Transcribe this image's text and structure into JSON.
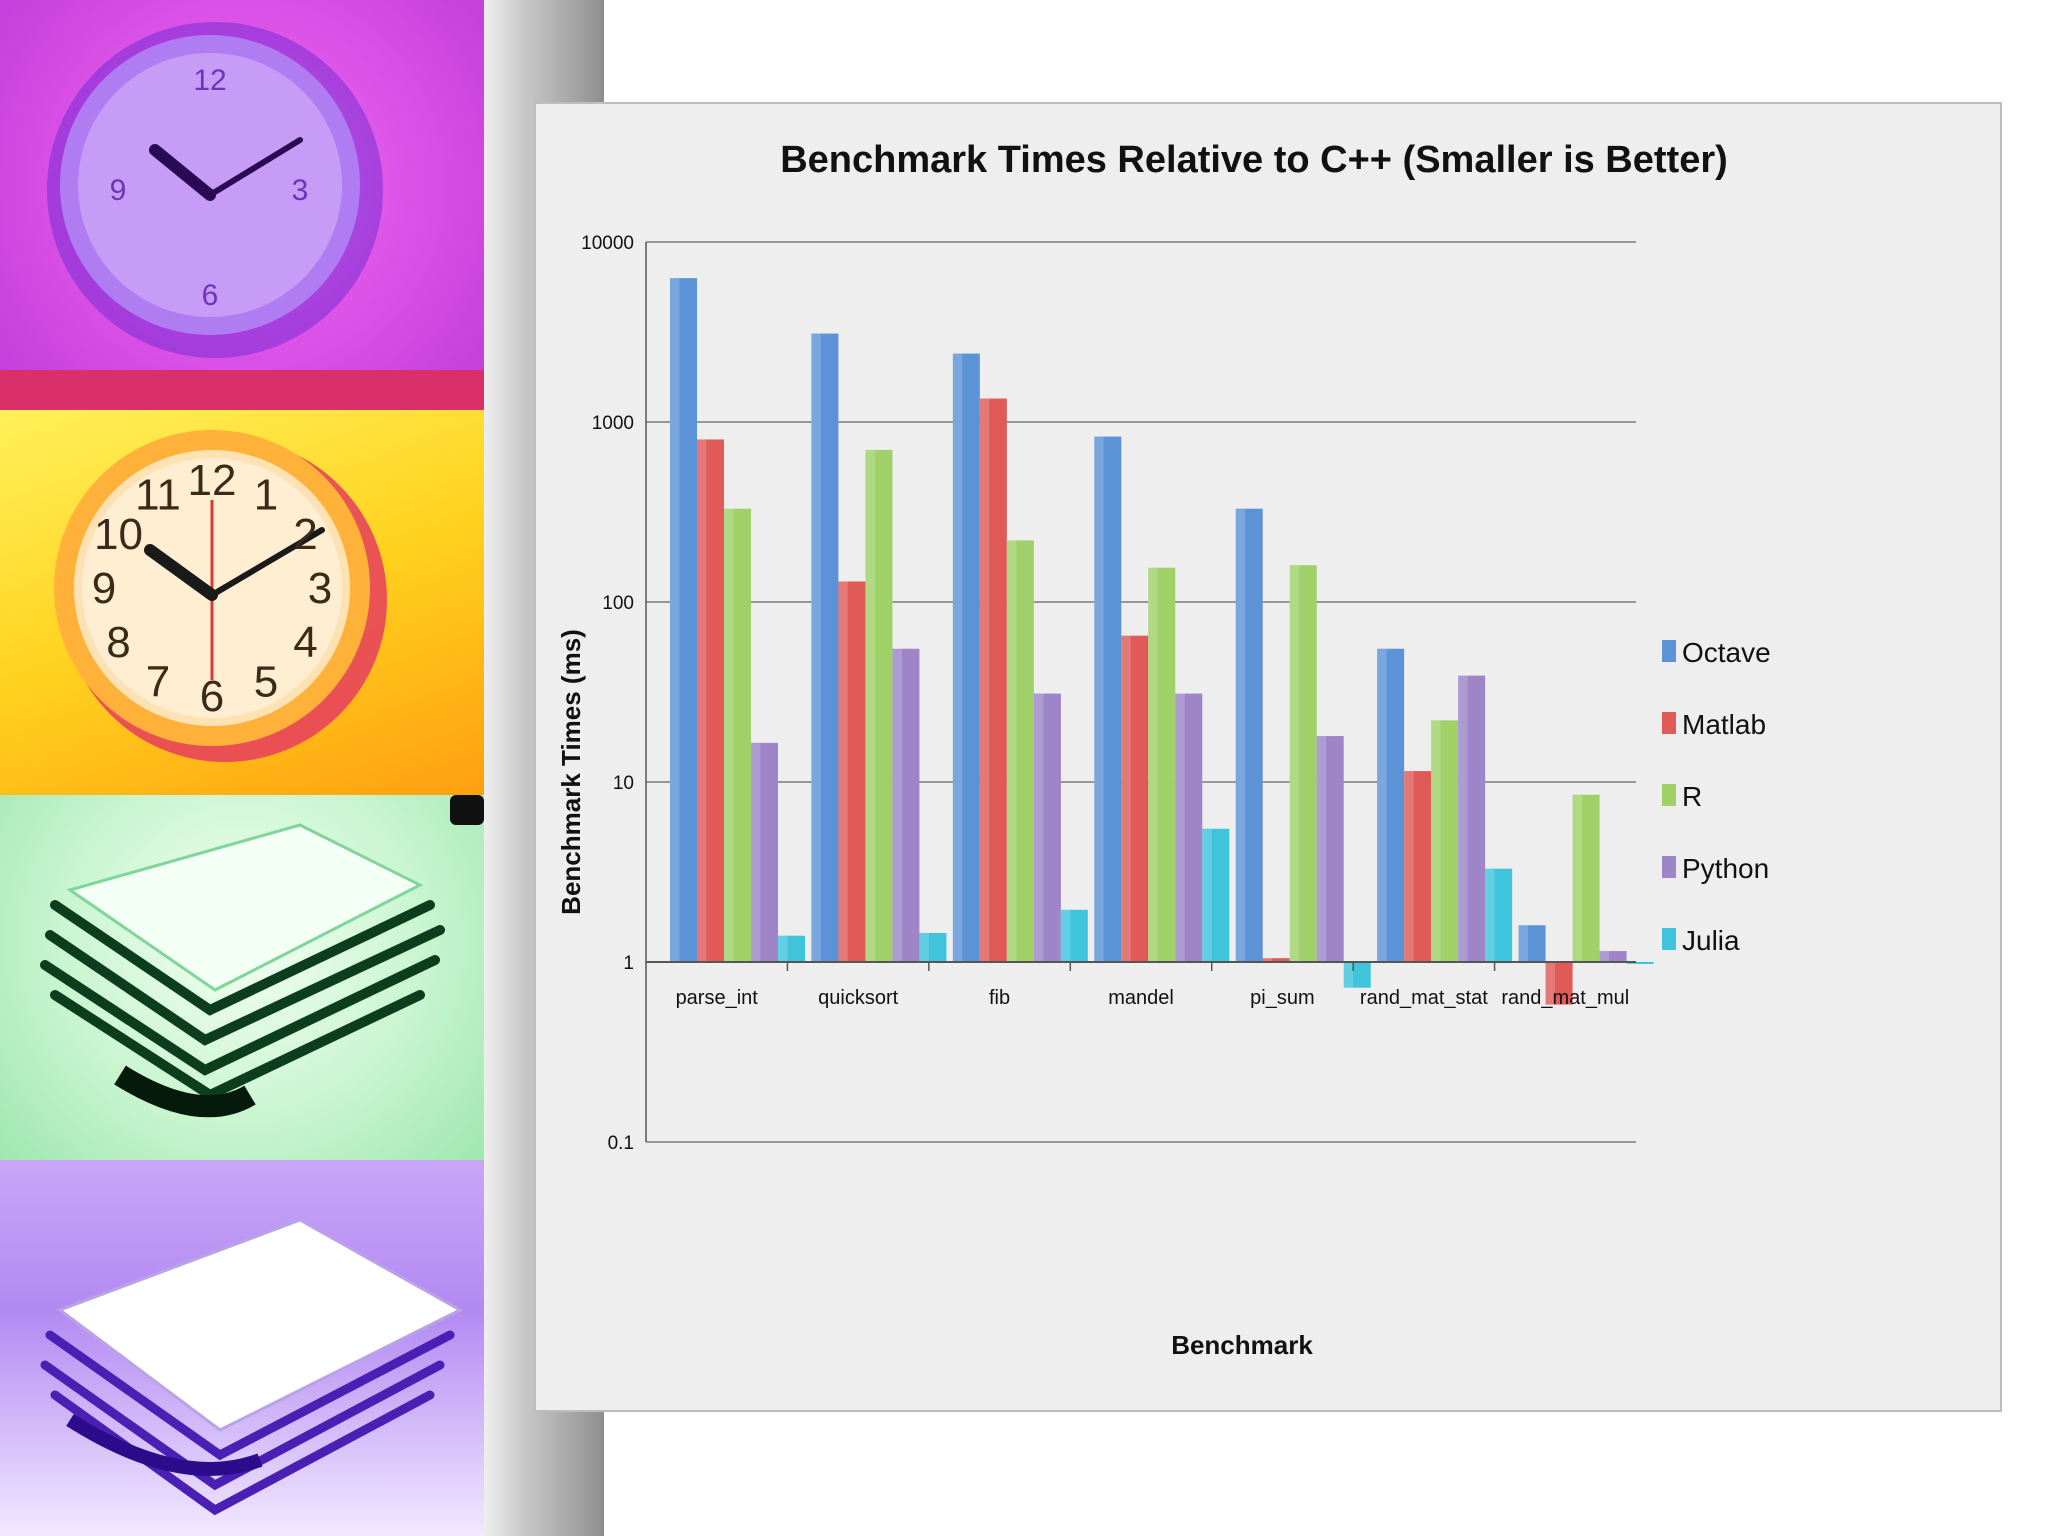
{
  "colors": {
    "Octave": "#5b93d6",
    "Matlab": "#e05a58",
    "R": "#9fd168",
    "Python": "#9d85c8",
    "Julia": "#3fc4dc"
  },
  "decor": {
    "icons": [
      "clock-purple-icon",
      "clock-orange-icon",
      "paper-stack-green-icon",
      "paper-stack-purple-icon"
    ],
    "clock_numbers": [
      "12",
      "1",
      "2",
      "3",
      "4",
      "5",
      "6",
      "7",
      "8",
      "9",
      "10",
      "11"
    ]
  },
  "chart_data": {
    "type": "bar",
    "title": "Benchmark Times Relative to C++ (Smaller is Better)",
    "xlabel": "Benchmark",
    "ylabel": "Benchmark Times (ms)",
    "yscale": "log",
    "ylim": [
      0.1,
      10000
    ],
    "yticks": [
      "0.1",
      "1",
      "10",
      "100",
      "1000",
      "10000"
    ],
    "grid": true,
    "legend_position": "right",
    "categories": [
      "parse_int",
      "quicksort",
      "fib",
      "mandel",
      "pi_sum",
      "rand_mat_stat",
      "rand_mat_mul"
    ],
    "series": [
      {
        "name": "Octave",
        "values": [
          6300,
          3100,
          2400,
          830,
          330,
          55,
          1.6
        ]
      },
      {
        "name": "Matlab",
        "values": [
          800,
          130,
          1350,
          65,
          1.05,
          11.5,
          0.58
        ]
      },
      {
        "name": "R",
        "values": [
          330,
          700,
          220,
          155,
          160,
          22,
          8.5
        ]
      },
      {
        "name": "Python",
        "values": [
          16.5,
          55,
          31,
          31,
          18,
          39,
          1.15
        ]
      },
      {
        "name": "Julia",
        "values": [
          1.4,
          1.45,
          1.95,
          5.5,
          0.72,
          3.3,
          1.0
        ]
      }
    ]
  }
}
